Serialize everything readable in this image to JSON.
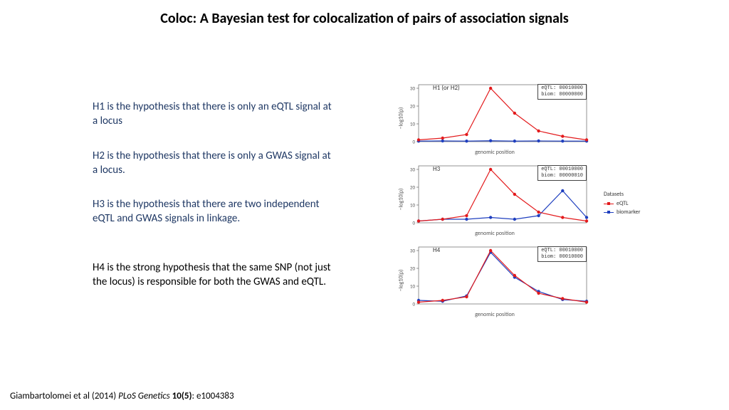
{
  "title": "Coloc:  A Bayesian test for colocalization of pairs of association signals",
  "title_fontsize": 20,
  "hypotheses": {
    "h1": "H1 is the hypothesis that there is only an eQTL signal at a locus",
    "h2": "H2 is the hypothesis that there is only a GWAS signal at a locus.",
    "h3": "H3 is the hypothesis that there are two independent eQTL and GWAS signals in linkage.",
    "h4": "H4 is the strong hypothesis that the same SNP (not just the locus) is responsible for both the GWAS and eQTL.",
    "fontsize": 15,
    "color_h123": "#1f3864",
    "color_h4": "#000000"
  },
  "citation": {
    "authors": "Giambartolomei et al (2014) ",
    "journal": "PLoS Genetics",
    "vol": " 10(5)",
    "pages": ": e1004383",
    "fontsize": 13
  },
  "chart_common": {
    "ylabel": "−log10(p)",
    "xlabel": "genomic position",
    "ylim": [
      0,
      32
    ],
    "yticks": [
      0,
      10,
      20,
      30
    ],
    "x_positions": [
      0,
      1,
      2,
      3,
      4,
      5,
      6,
      7
    ],
    "plot_bg": "#ffffff",
    "border_color": "#666666",
    "grid_color": "#dddddd",
    "axis_text_color": "#555555",
    "axis_fontsize": 8,
    "tick_fontsize": 7,
    "title_fontsize": 9,
    "stringbox_fontsize": 7,
    "line_width": 1.2,
    "marker_size": 2.2,
    "eqtl_color": "#e31a1c",
    "biom_color": "#1f3fbf"
  },
  "panels": [
    {
      "id": "h1h2",
      "title": "H1 (or H2)",
      "eqtl_string": "eQTL: 00010000",
      "biom_string": "biom: 00000000",
      "eqtl_y": [
        1,
        2,
        4,
        30,
        16,
        6,
        3,
        1
      ],
      "biom_y": [
        0.3,
        0.4,
        0.3,
        0.5,
        0.3,
        0.4,
        0.3,
        0.3
      ]
    },
    {
      "id": "h3",
      "title": "H3",
      "eqtl_string": "eQTL: 00010000",
      "biom_string": "biom: 00000010",
      "eqtl_y": [
        1,
        2,
        4,
        30,
        16,
        6,
        3,
        1
      ],
      "biom_y": [
        1,
        2,
        2,
        3,
        2,
        4,
        18,
        3
      ]
    },
    {
      "id": "h4",
      "title": "H4",
      "eqtl_string": "eQTL: 00010000",
      "biom_string": "biom: 00010000",
      "eqtl_y": [
        1,
        2,
        4,
        30,
        16,
        6,
        3,
        1
      ],
      "biom_y": [
        2,
        1.5,
        4.5,
        29,
        15,
        7,
        2.5,
        1.5
      ]
    }
  ],
  "legend": {
    "title": "Datasets",
    "items": [
      {
        "label": "eQTL",
        "color": "#e31a1c"
      },
      {
        "label": "biomarker",
        "color": "#1f3fbf"
      }
    ],
    "fontsize": 8
  }
}
